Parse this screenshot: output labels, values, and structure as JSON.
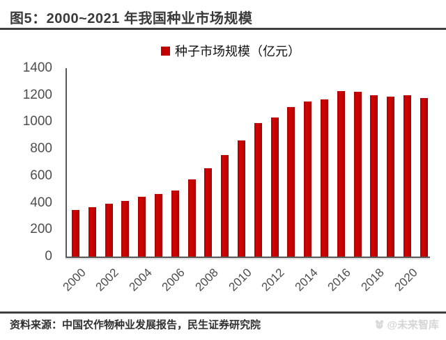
{
  "header": {
    "title": "图5：2000~2021 年我国种业市场规模"
  },
  "chart_data": {
    "type": "bar",
    "title": "图5：2000~2021 年我国种业市场规模",
    "legend": "种子市场规模（亿元）",
    "categories": [
      "2000",
      "2001",
      "2002",
      "2003",
      "2004",
      "2005",
      "2006",
      "2007",
      "2008",
      "2009",
      "2010",
      "2011",
      "2012",
      "2013",
      "2014",
      "2015",
      "2016",
      "2017",
      "2018",
      "2019",
      "2020",
      "2021"
    ],
    "values": [
      345,
      367,
      391,
      415,
      442,
      466,
      490,
      575,
      655,
      754,
      864,
      990,
      1035,
      1111,
      1151,
      1170,
      1230,
      1222,
      1200,
      1190,
      1200,
      1180
    ],
    "xlabel": "",
    "ylabel": "",
    "ylim": [
      0,
      1400
    ],
    "ytick_step": 200,
    "xtick_every": 2,
    "grid": false,
    "legend_position": "top-center",
    "bar_color": "#C00000"
  },
  "footer": {
    "source": "资料来源：中国农作物种业发展报告，民生证券研究院",
    "watermark": "@未来智库"
  },
  "colors": {
    "bar": "#C00000",
    "rule": "#3f3f3f",
    "axis": "#595959",
    "tick_label": "#4d4d4d",
    "title_text": "#3a3a3a",
    "watermark": "#d5d5d5"
  }
}
